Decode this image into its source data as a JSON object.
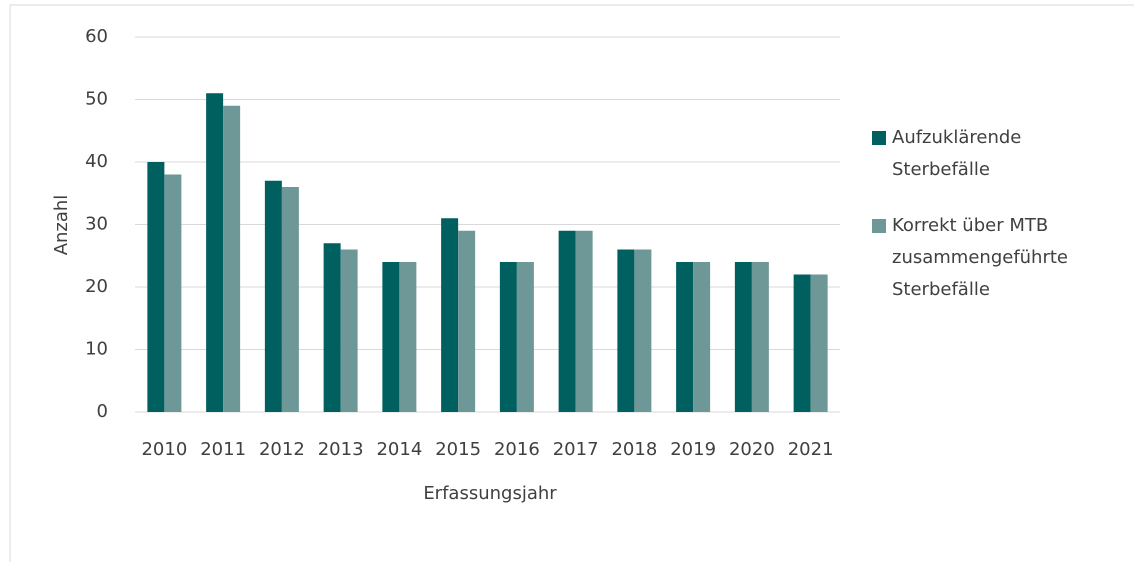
{
  "chart_data": {
    "type": "bar",
    "categories": [
      "2010",
      "2011",
      "2012",
      "2013",
      "2014",
      "2015",
      "2016",
      "2017",
      "2018",
      "2019",
      "2020",
      "2021"
    ],
    "series": [
      {
        "name": "Aufzuklärende Sterbefälle",
        "color": "#005f5f",
        "values": [
          40,
          51,
          37,
          27,
          24,
          31,
          24,
          29,
          26,
          24,
          24,
          22
        ]
      },
      {
        "name": "Korrekt über MTB zusammengeführte Sterbefälle",
        "color": "#6e9797",
        "values": [
          38,
          49,
          36,
          26,
          24,
          29,
          24,
          29,
          26,
          24,
          24,
          22
        ]
      }
    ],
    "x_label": "Erfassungsjahr",
    "y_label": "Anzahl",
    "ylim": [
      0,
      60
    ],
    "yticks": [
      0,
      10,
      20,
      30,
      40,
      50,
      60
    ],
    "grid": true,
    "legend": "right"
  }
}
